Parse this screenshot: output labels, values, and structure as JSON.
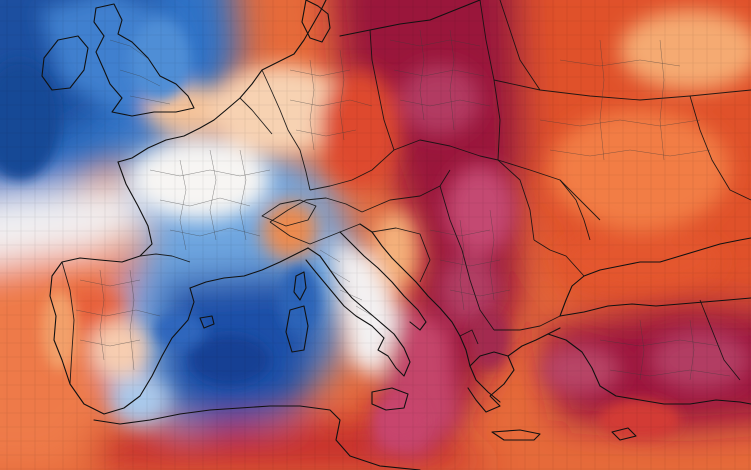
{
  "map": {
    "type": "temperature-anomaly-map",
    "region": "Europe",
    "labels_visible": false,
    "colors": {
      "deep_cold": "#0a3c8c",
      "cold": "#2f72c7",
      "cool": "#7fb3e6",
      "neutral": "#f6f4f2",
      "warm": "#f7b27a",
      "hot": "#e8532f",
      "very_hot": "#c51f2b",
      "extreme": "#8f1238",
      "extreme_peak": "#b83b63",
      "land_border": "#111111",
      "admin_border": "#5a5a5a"
    },
    "legend_visible": false
  }
}
